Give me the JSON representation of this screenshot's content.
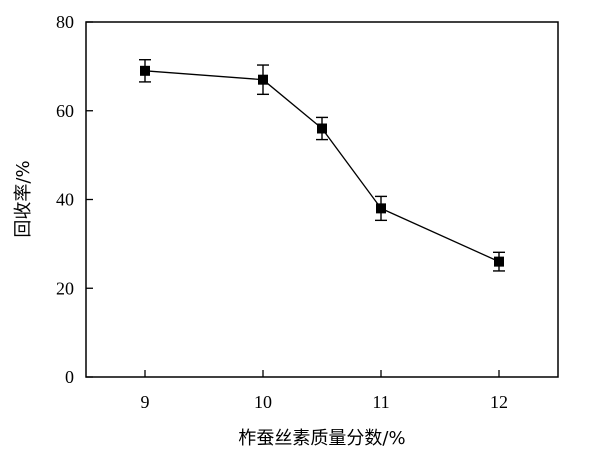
{
  "chart_data": {
    "type": "line",
    "title": "",
    "xlabel": "柞蚕丝素质量分数/%",
    "ylabel": "回收率/%",
    "xlim": [
      8.5,
      12.5
    ],
    "ylim": [
      0,
      80
    ],
    "x_ticks": [
      "9",
      "10",
      "11",
      "12"
    ],
    "y_ticks": [
      "0",
      "20",
      "40",
      "60",
      "80"
    ],
    "grid": false,
    "legend": "none",
    "series": [
      {
        "x": [
          9,
          10,
          10.5,
          11,
          12
        ],
        "y": [
          69,
          67,
          56,
          38,
          26
        ],
        "error": [
          2.5,
          3.3,
          2.5,
          2.7,
          2.1
        ],
        "color": "#000000",
        "marker": "square"
      }
    ]
  }
}
